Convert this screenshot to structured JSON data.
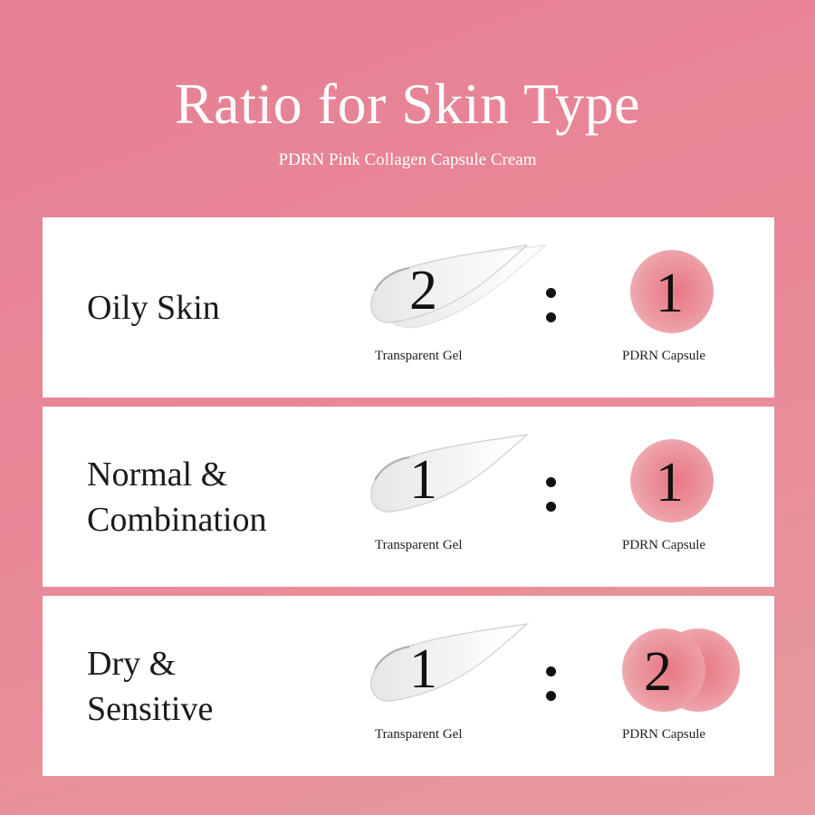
{
  "title": "Ratio for Skin Type",
  "subtitle": "PDRN Pink Collagen Capsule Cream",
  "gel_caption": "Transparent Gel",
  "capsule_caption": "PDRN Capsule",
  "colors": {
    "background": "#e8879a",
    "card": "#ffffff",
    "capsule": "#e77884"
  },
  "rows": [
    {
      "skin_type": "Oily Skin",
      "gel_ratio": "2",
      "capsule_ratio": "1",
      "separator": ":"
    },
    {
      "skin_type": "Normal &\nCombination",
      "gel_ratio": "1",
      "capsule_ratio": "1",
      "separator": ":"
    },
    {
      "skin_type": "Dry &\nSensitive",
      "gel_ratio": "1",
      "capsule_ratio": "2",
      "separator": ":"
    }
  ]
}
